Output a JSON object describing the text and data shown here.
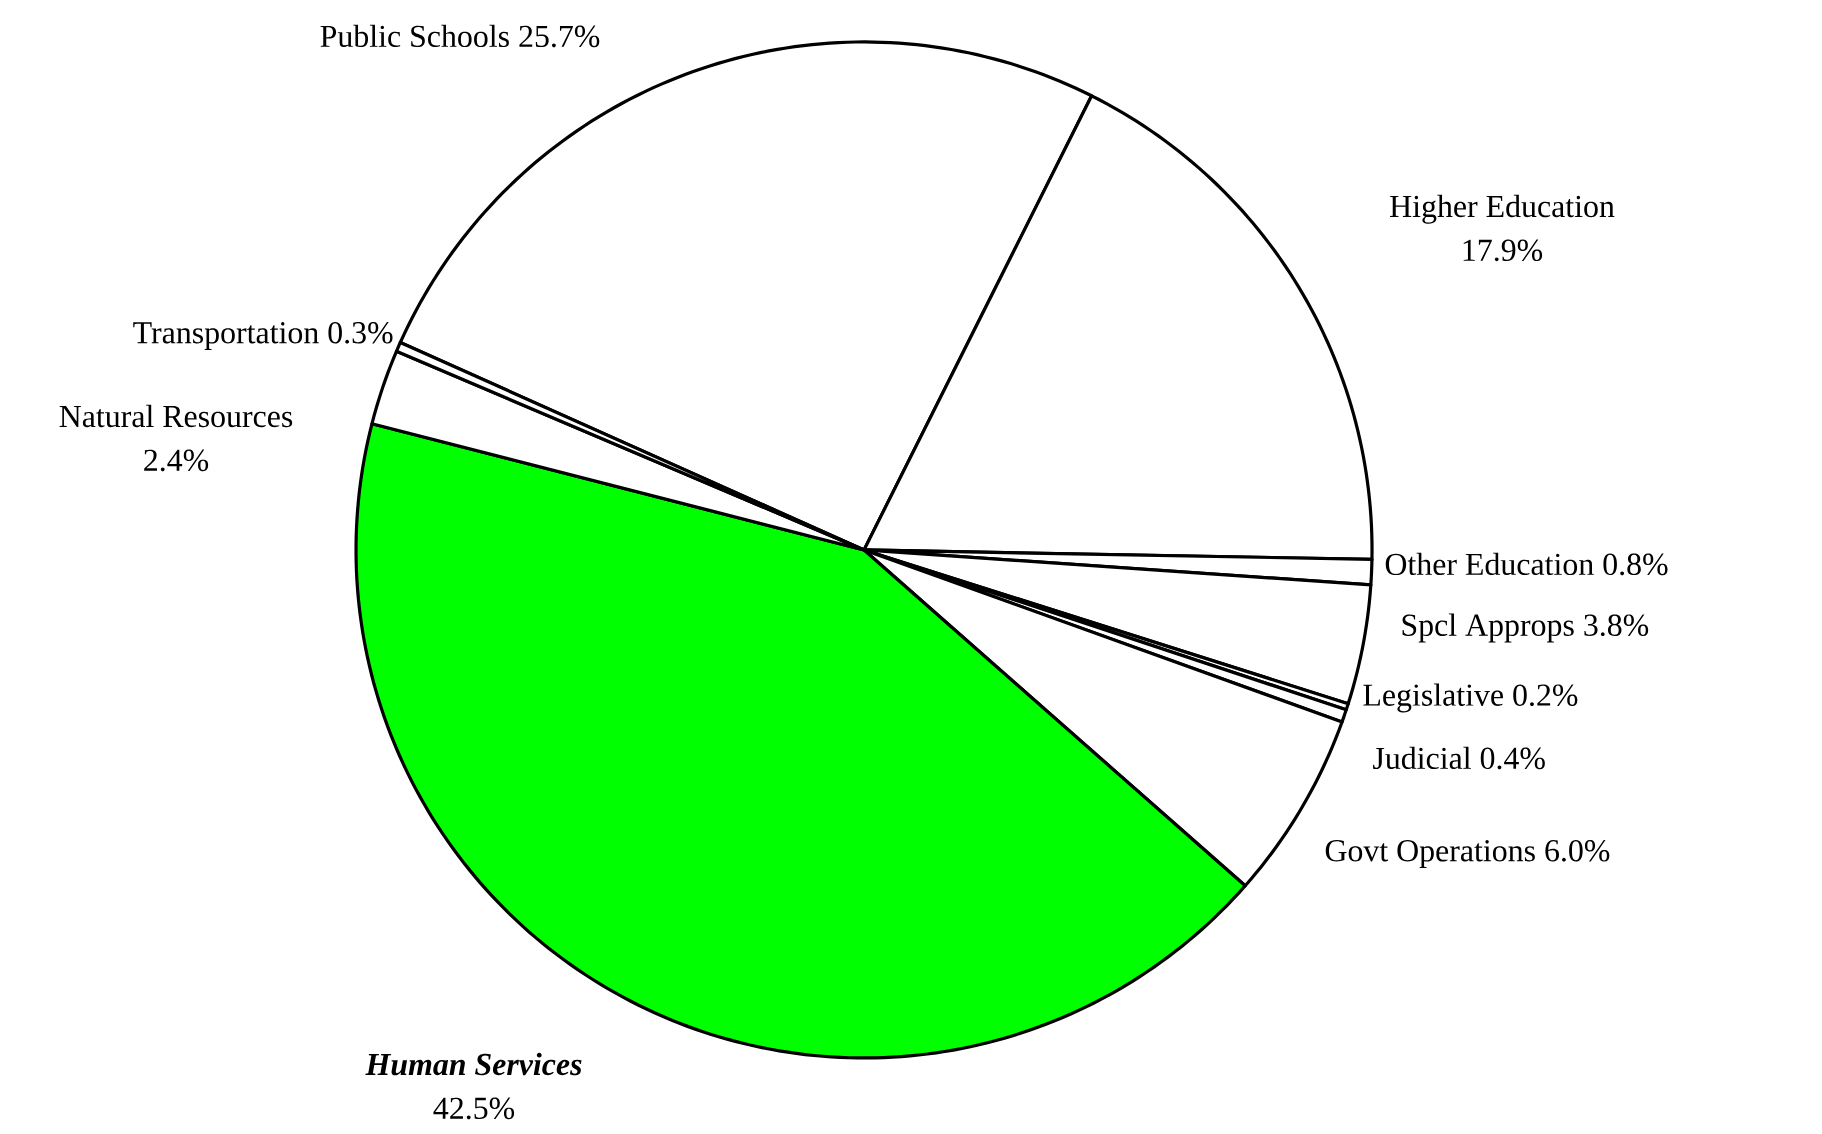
{
  "chart_data": {
    "type": "pie",
    "categories": [
      "Public Schools",
      "Higher Education",
      "Other Education",
      "Spcl Approps",
      "Legislative",
      "Judicial",
      "Govt Operations",
      "Human Services",
      "Natural Resources",
      "Transportation"
    ],
    "values": [
      25.7,
      17.9,
      0.8,
      3.8,
      0.2,
      0.4,
      6.0,
      42.5,
      2.4,
      0.3
    ],
    "value_labels": [
      "25.7%",
      "17.9%",
      "0.8%",
      "3.8%",
      "0.2%",
      "0.4%",
      "6.0%",
      "42.5%",
      "2.4%",
      "0.3%"
    ],
    "colors": [
      "#ffffff",
      "#ffffff",
      "#ffffff",
      "#ffffff",
      "#ffffff",
      "#ffffff",
      "#ffffff",
      "#00ff00",
      "#ffffff",
      "#ffffff"
    ]
  }
}
